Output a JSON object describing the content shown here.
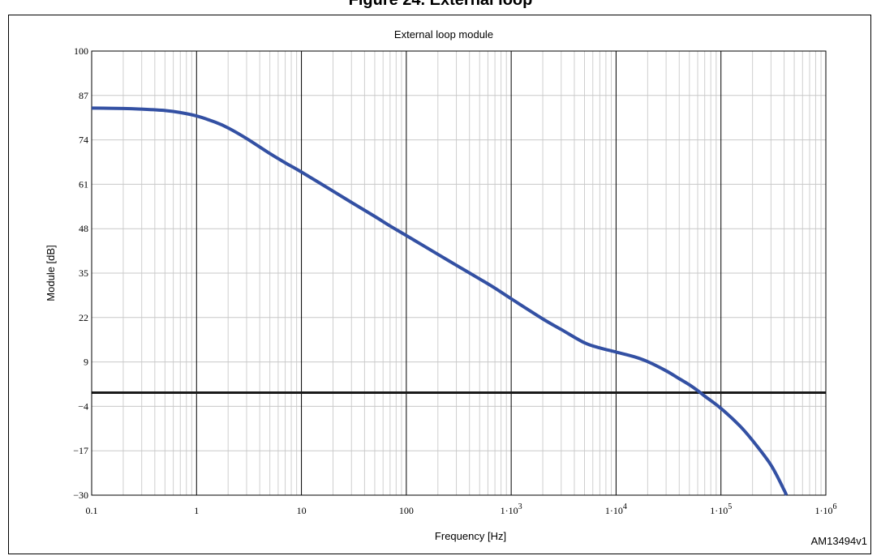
{
  "header": {
    "partial_title": "Figure 24. External loop"
  },
  "figure_id": "AM13494v1",
  "chart_data": {
    "type": "line",
    "title": "External loop module",
    "xlabel": "Frequency [Hz]",
    "ylabel": "Module [dB]",
    "x_scale": "log",
    "xlim": [
      0.1,
      1000000
    ],
    "ylim": [
      -30,
      100
    ],
    "x_ticks": [
      0.1,
      1,
      10,
      100,
      1000,
      10000,
      100000,
      1000000
    ],
    "x_tick_labels": [
      {
        "base": "0.1",
        "exp": ""
      },
      {
        "base": "1",
        "exp": ""
      },
      {
        "base": "10",
        "exp": ""
      },
      {
        "base": "100",
        "exp": ""
      },
      {
        "base": "1·10",
        "exp": "3"
      },
      {
        "base": "1·10",
        "exp": "4"
      },
      {
        "base": "1·10",
        "exp": "5"
      },
      {
        "base": "1·10",
        "exp": "6"
      }
    ],
    "y_ticks": [
      100,
      87,
      74,
      61,
      48,
      35,
      22,
      9,
      -4,
      -17,
      -30
    ],
    "y_tick_labels": [
      "100",
      "87",
      "74",
      "61",
      "48",
      "35",
      "22",
      "9",
      "−4",
      "−17",
      "−30"
    ],
    "grid": true,
    "reference_line": {
      "y": 0,
      "color": "#1a1a1a"
    },
    "series": [
      {
        "color": "#3350a3",
        "x": [
          0.1,
          0.2,
          0.3,
          0.5,
          0.7,
          1,
          1.5,
          2,
          3,
          5,
          7,
          10,
          20,
          30,
          50,
          70,
          100,
          200,
          300,
          500,
          700,
          1000,
          2000,
          3000,
          5000,
          7000,
          10000,
          15000,
          20000,
          30000,
          40000,
          50000,
          60000,
          70000,
          100000,
          150000,
          200000,
          300000,
          400000,
          420000
        ],
        "y": [
          83.3,
          83.2,
          83.0,
          82.6,
          82.0,
          81.0,
          79.2,
          77.5,
          74.4,
          70.0,
          67.3,
          64.6,
          59.0,
          55.7,
          51.6,
          48.8,
          46.0,
          40.5,
          37.3,
          33.3,
          30.6,
          27.5,
          21.6,
          18.5,
          14.6,
          13.1,
          11.9,
          10.5,
          9.1,
          6.4,
          4.1,
          2.3,
          0.6,
          -1.0,
          -4.6,
          -9.6,
          -14.0,
          -21.2,
          -28.5,
          -30.0
        ]
      }
    ]
  }
}
